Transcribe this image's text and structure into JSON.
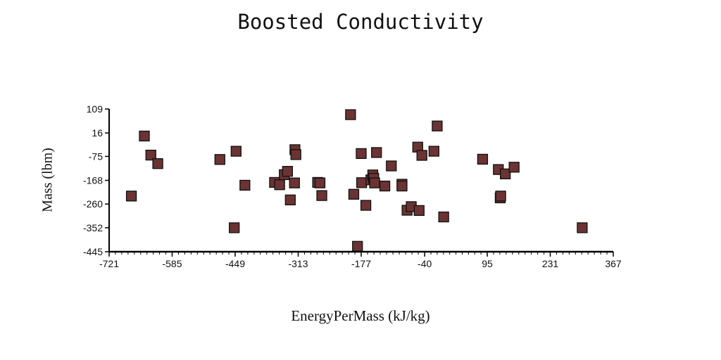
{
  "chart_data": {
    "type": "scatter",
    "title": "Boosted Conductivity",
    "xlabel": "EnergyPerMass (kJ/kg)",
    "ylabel": "Mass (lbm)",
    "xlim": [
      -721,
      367
    ],
    "ylim": [
      -445,
      109
    ],
    "x_ticks": [
      -721,
      -585,
      -449,
      -313,
      -177,
      -40,
      95,
      231,
      367
    ],
    "y_ticks": [
      -445,
      -352,
      -260,
      -168,
      -75,
      16,
      109
    ],
    "marker": "square",
    "marker_color": "#6b3333",
    "grid": false,
    "series": [
      {
        "points": [
          [
            -673,
            -229
          ],
          [
            -645,
            4
          ],
          [
            -631,
            -70
          ],
          [
            -616,
            -103
          ],
          [
            -482,
            -87
          ],
          [
            -447,
            -55
          ],
          [
            -428,
            -187
          ],
          [
            -451,
            -352
          ],
          [
            -364,
            -176
          ],
          [
            -353,
            -185
          ],
          [
            -343,
            -146
          ],
          [
            -336,
            -133
          ],
          [
            -330,
            -244
          ],
          [
            -320,
            -49
          ],
          [
            -318,
            -68
          ],
          [
            -321,
            -178
          ],
          [
            -271,
            -176
          ],
          [
            -266,
            -178
          ],
          [
            -262,
            -227
          ],
          [
            -200,
            87
          ],
          [
            -193,
            -222
          ],
          [
            -185,
            -424
          ],
          [
            -177,
            -64
          ],
          [
            -176,
            -177
          ],
          [
            -167,
            -265
          ],
          [
            -156,
            -166
          ],
          [
            -152,
            -147
          ],
          [
            -150,
            -160
          ],
          [
            -148,
            -178
          ],
          [
            -144,
            -60
          ],
          [
            -126,
            -190
          ],
          [
            -112,
            -112
          ],
          [
            -89,
            -183
          ],
          [
            -89,
            -190
          ],
          [
            -78,
            -284
          ],
          [
            -69,
            -270
          ],
          [
            -55,
            -39
          ],
          [
            -52,
            -285
          ],
          [
            -46,
            -71
          ],
          [
            -20,
            -55
          ],
          [
            -13,
            43
          ],
          [
            1,
            -310
          ],
          [
            85,
            -86
          ],
          [
            119,
            -126
          ],
          [
            123,
            -236
          ],
          [
            124,
            -229
          ],
          [
            134,
            -143
          ],
          [
            153,
            -117
          ],
          [
            300,
            -352
          ]
        ]
      }
    ]
  }
}
